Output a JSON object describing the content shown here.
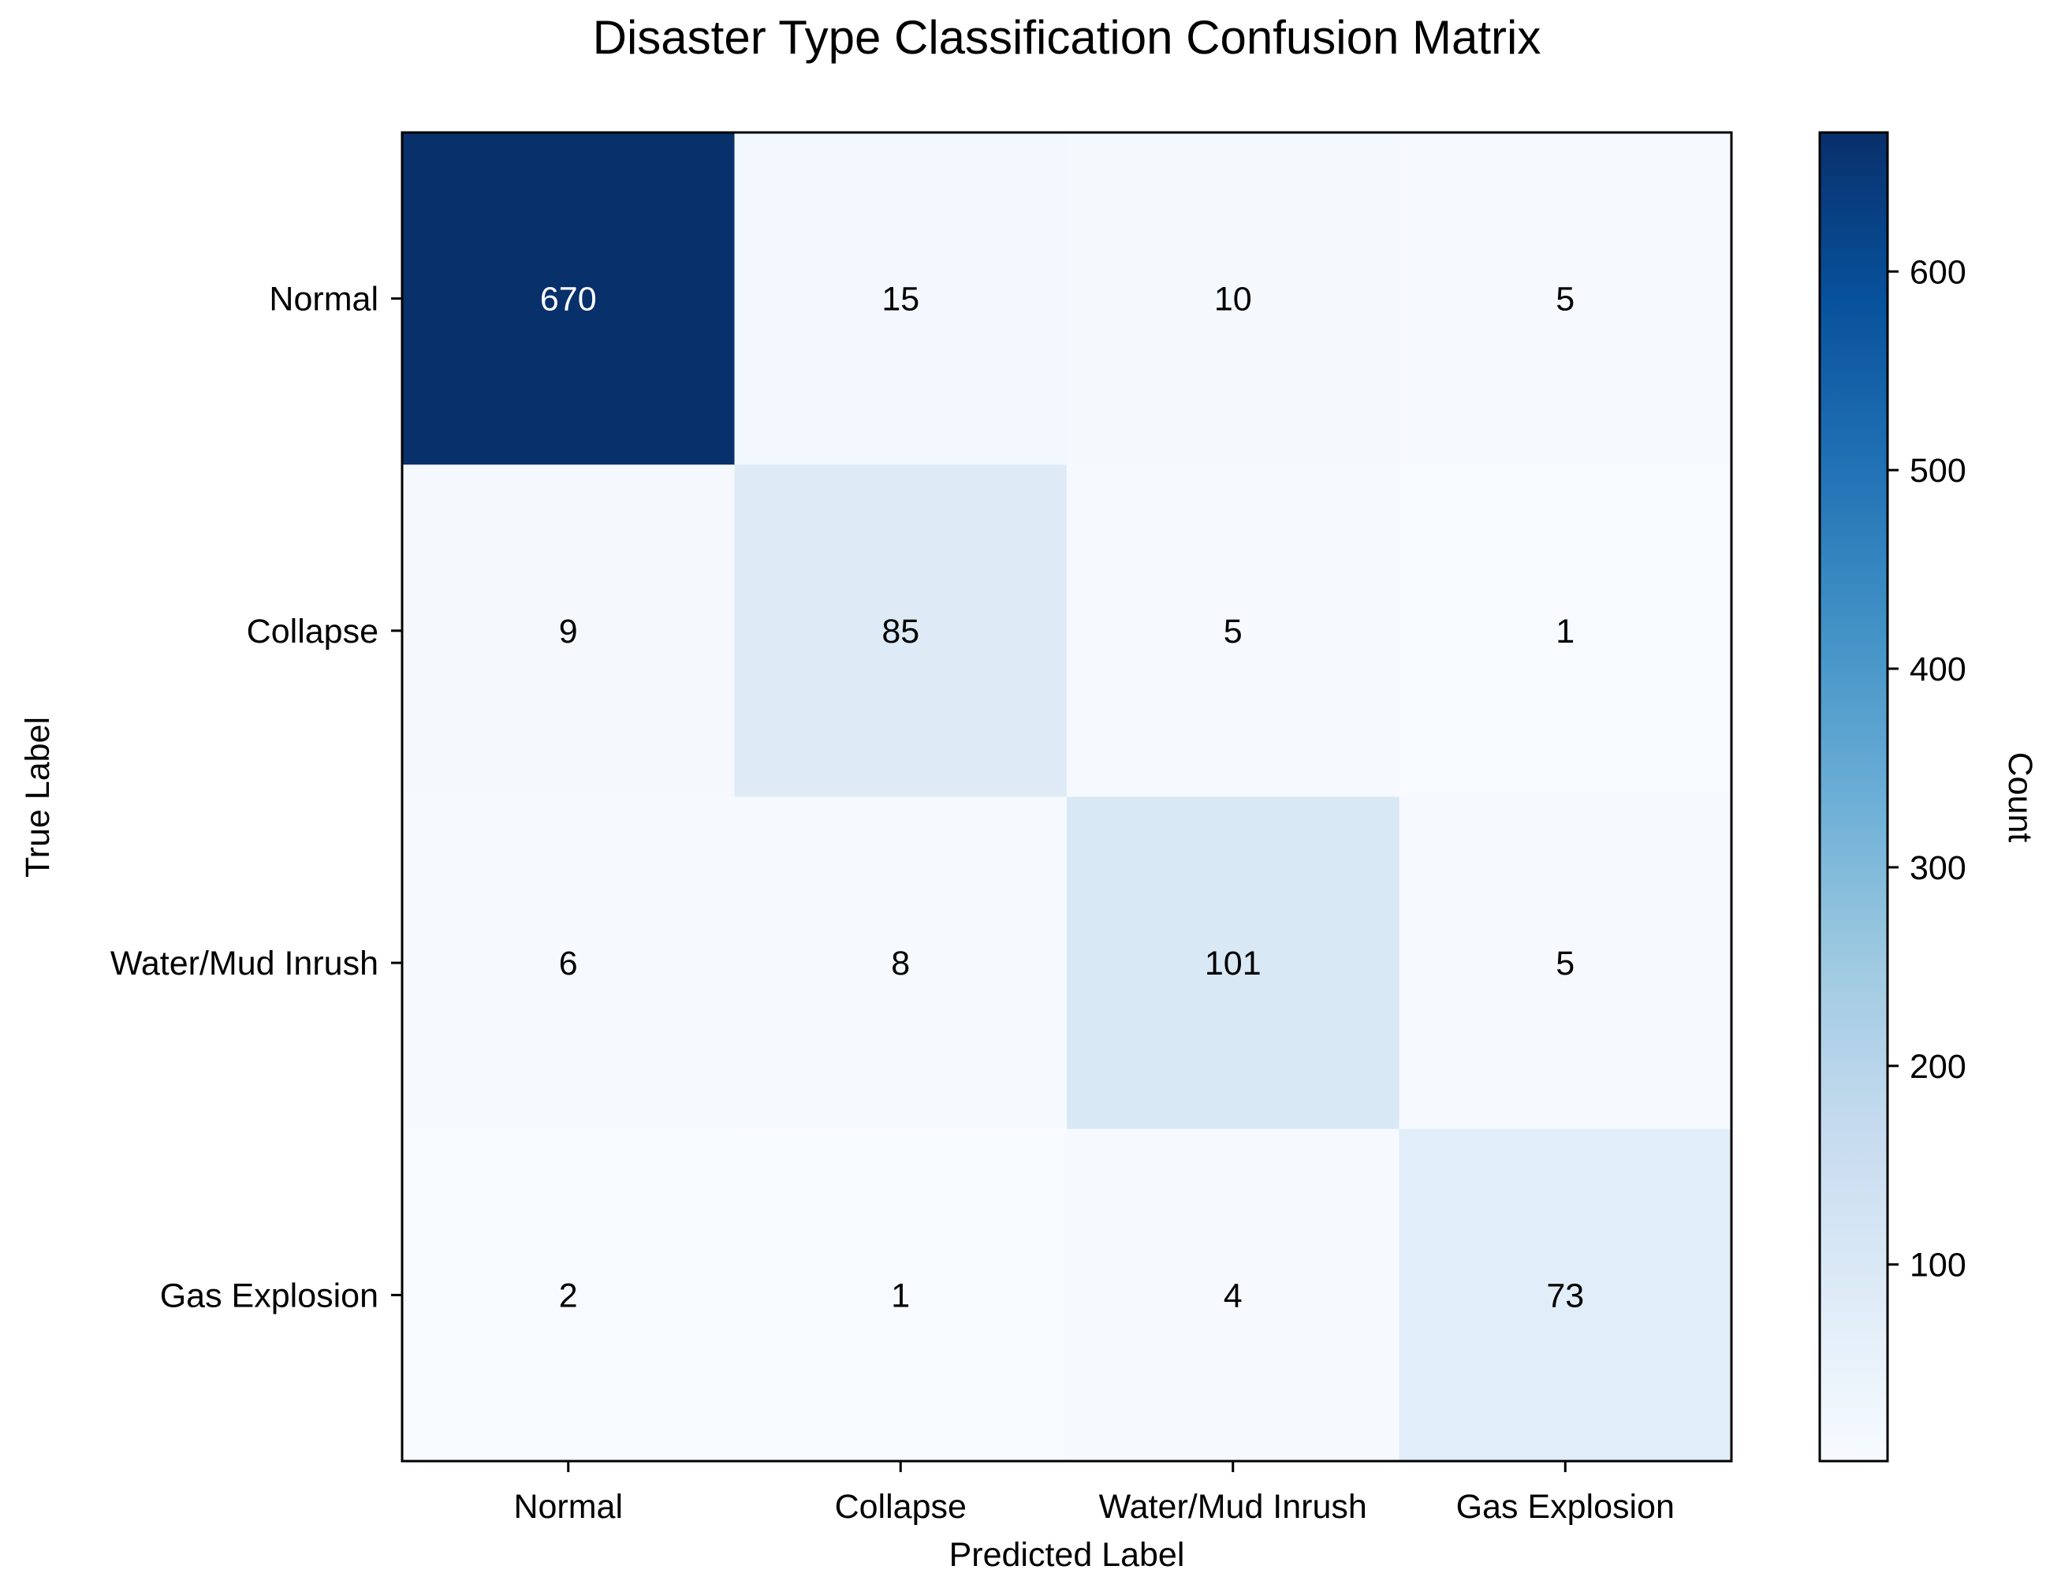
{
  "chart_data": {
    "type": "heatmap",
    "title": "Disaster Type Classification Confusion Matrix",
    "xlabel": "Predicted Label",
    "ylabel": "True Label",
    "x_categories": [
      "Normal",
      "Collapse",
      "Water/Mud Inrush",
      "Gas Explosion"
    ],
    "y_categories": [
      "Normal",
      "Collapse",
      "Water/Mud Inrush",
      "Gas Explosion"
    ],
    "matrix": [
      [
        670,
        15,
        10,
        5
      ],
      [
        9,
        85,
        5,
        1
      ],
      [
        6,
        8,
        101,
        5
      ],
      [
        2,
        1,
        4,
        73
      ]
    ],
    "colormap": "Blues",
    "colorbar": {
      "label": "Count",
      "range": [
        1,
        670
      ],
      "ticks": [
        100,
        200,
        300,
        400,
        500,
        600
      ]
    },
    "colors": {
      "low": "#f7fbff",
      "high": "#08306b",
      "text_dark_cell": "#ffffff",
      "text_light_cell": "#000000"
    }
  }
}
